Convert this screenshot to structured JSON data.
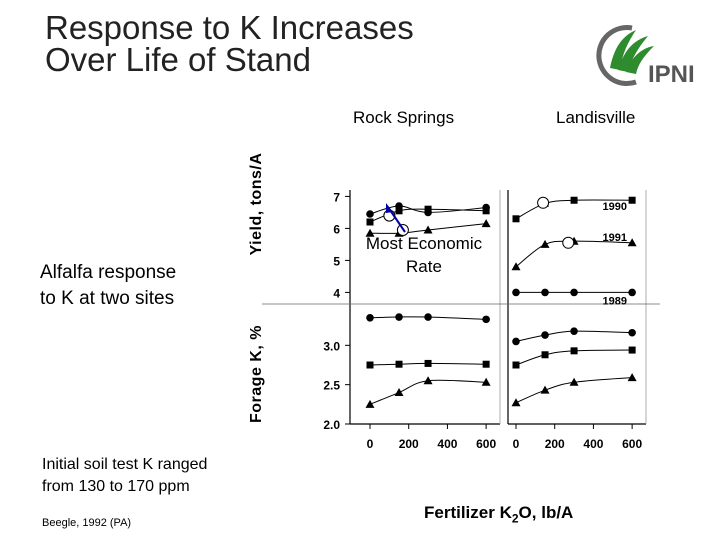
{
  "header": {
    "title_line1": "Response to K Increases",
    "title_line2": "Over Life of Stand"
  },
  "logo": {
    "text": "IPNI",
    "colors": {
      "green": "#2e8b2e",
      "gray": "#666666"
    }
  },
  "left_text": {
    "line1": "Alfalfa response",
    "line2": "to K at two sites",
    "note_line1": "Initial soil test K ranged",
    "note_line2": "from 130 to 170 ppm",
    "citation": "Beegle, 1992 (PA)"
  },
  "annotation": {
    "line1": "Most Economic",
    "line2": "Rate"
  },
  "chart_data": {
    "type": "scatter",
    "panels": [
      "Rock Springs",
      "Landisville"
    ],
    "x_ticks": [
      0,
      200,
      400,
      600
    ],
    "xlim": [
      0,
      620
    ],
    "xlabel_main": "Fertilizer K",
    "xlabel_sub": "2",
    "xlabel_tail": "O, lb/A",
    "yield": {
      "ylabel": "Yield, tons/A",
      "ylim": [
        3.7,
        7.2
      ],
      "ticks": [
        4,
        5,
        6,
        7
      ],
      "series": [
        {
          "name": "1990",
          "marker": "square",
          "rock_springs": [
            [
              0,
              6.2
            ],
            [
              150,
              6.55
            ],
            [
              300,
              6.6
            ],
            [
              600,
              6.55
            ]
          ],
          "landisville": [
            [
              0,
              6.3
            ],
            [
              150,
              6.78
            ],
            [
              300,
              6.88
            ],
            [
              600,
              6.88
            ]
          ]
        },
        {
          "name": "",
          "marker": "circle",
          "rock_springs": [
            [
              0,
              6.45
            ],
            [
              150,
              6.7
            ],
            [
              300,
              6.5
            ],
            [
              600,
              6.65
            ]
          ],
          "landisville": []
        },
        {
          "name": "1991",
          "marker": "triangle",
          "rock_springs": [
            [
              0,
              5.85
            ],
            [
              150,
              5.85
            ],
            [
              300,
              5.95
            ],
            [
              600,
              6.15
            ]
          ],
          "landisville": [
            [
              0,
              4.8
            ],
            [
              150,
              5.5
            ],
            [
              300,
              5.6
            ],
            [
              600,
              5.55
            ]
          ]
        },
        {
          "name": "1989",
          "marker": "circle",
          "rock_springs": [],
          "landisville": [
            [
              0,
              4.0
            ],
            [
              150,
              4.0
            ],
            [
              300,
              4.0
            ],
            [
              600,
              4.0
            ]
          ]
        }
      ],
      "economic_rate": {
        "rock_springs": [
          [
            100,
            6.4
          ],
          [
            170,
            5.95
          ]
        ],
        "landisville": [
          [
            140,
            6.8
          ],
          [
            270,
            5.55
          ]
        ]
      }
    },
    "forage_k": {
      "ylabel": "Forage K, %",
      "ylim": [
        2.0,
        3.5
      ],
      "ticks": [
        "3.0",
        "2.5",
        "2.0"
      ],
      "series": [
        {
          "name": "",
          "marker": "circle",
          "rock_springs": [
            [
              0,
              3.35
            ],
            [
              150,
              3.36
            ],
            [
              300,
              3.36
            ],
            [
              600,
              3.33
            ]
          ],
          "landisville": [
            [
              0,
              3.05
            ],
            [
              150,
              3.13
            ],
            [
              300,
              3.18
            ],
            [
              600,
              3.16
            ]
          ]
        },
        {
          "name": "",
          "marker": "square",
          "rock_springs": [
            [
              0,
              2.75
            ],
            [
              150,
              2.76
            ],
            [
              300,
              2.77
            ],
            [
              600,
              2.76
            ]
          ],
          "landisville": [
            [
              0,
              2.75
            ],
            [
              150,
              2.88
            ],
            [
              300,
              2.93
            ],
            [
              600,
              2.94
            ]
          ]
        },
        {
          "name": "",
          "marker": "triangle",
          "rock_springs": [
            [
              0,
              2.25
            ],
            [
              150,
              2.4
            ],
            [
              300,
              2.55
            ],
            [
              600,
              2.53
            ]
          ],
          "landisville": [
            [
              0,
              2.27
            ],
            [
              150,
              2.43
            ],
            [
              300,
              2.53
            ],
            [
              600,
              2.59
            ]
          ]
        }
      ]
    },
    "colors": {
      "axis": "#000000",
      "marker_fill": "#000000",
      "open_marker": "#ffffff",
      "annotation": "#0000aa"
    }
  }
}
